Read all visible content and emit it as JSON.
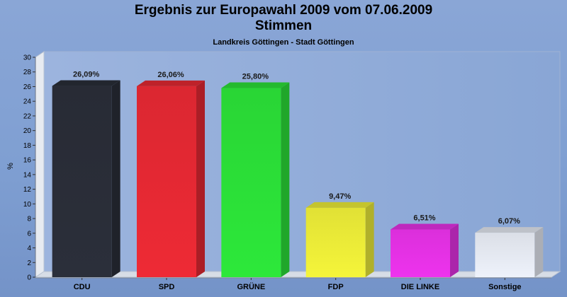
{
  "chart_data": {
    "type": "bar",
    "title": [
      "Ergebnis zur Europawahl 2009 vom 07.06.2009",
      "Stimmen"
    ],
    "subtitle": "Landkreis Göttingen - Stadt Göttingen",
    "ylabel": "%",
    "xlabel": "",
    "ylim": [
      0,
      30
    ],
    "yticks": [
      0,
      2,
      4,
      6,
      8,
      10,
      12,
      14,
      16,
      18,
      20,
      22,
      24,
      26,
      28,
      30
    ],
    "grid": false,
    "categories": [
      "CDU",
      "SPD",
      "GRÜNE",
      "FDP",
      "DIE LINKE",
      "Sonstige"
    ],
    "values": [
      26.09,
      26.06,
      25.8,
      9.47,
      6.51,
      6.07
    ],
    "value_labels": [
      "26,09%",
      "26,06%",
      "25,80%",
      "9,47%",
      "6,51%",
      "6,07%"
    ],
    "colors": [
      "#2b2f3a",
      "#ee2a35",
      "#2de83a",
      "#f5f53a",
      "#ee33ee",
      "#eef2fb"
    ]
  }
}
